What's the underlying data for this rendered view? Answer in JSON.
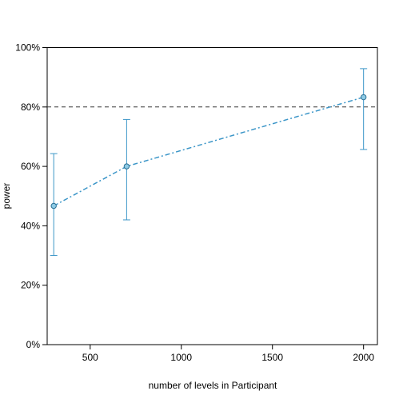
{
  "chart_data": {
    "type": "line",
    "xlabel": "number of levels in Participant",
    "ylabel": "power",
    "xlim": [
      264,
      2076
    ],
    "ylim": [
      0,
      100
    ],
    "x_ticks": [
      500,
      1000,
      1500,
      2000
    ],
    "y_ticks": [
      0,
      20,
      40,
      60,
      80,
      100
    ],
    "y_tick_labels": [
      "0%",
      "20%",
      "40%",
      "60%",
      "80%",
      "100%"
    ],
    "reference_line": {
      "y": 80,
      "style": "dashed",
      "color": "#333333"
    },
    "series": [
      {
        "x": [
          300,
          700,
          2000
        ],
        "values": [
          46.7,
          60.0,
          83.3
        ],
        "ci_lower": [
          30.0,
          42.0,
          65.7
        ],
        "ci_upper": [
          64.3,
          75.8,
          92.9
        ],
        "color": "#3C96C8",
        "fill": "#8ECBE6"
      }
    ],
    "grid": false,
    "legend": "none"
  }
}
